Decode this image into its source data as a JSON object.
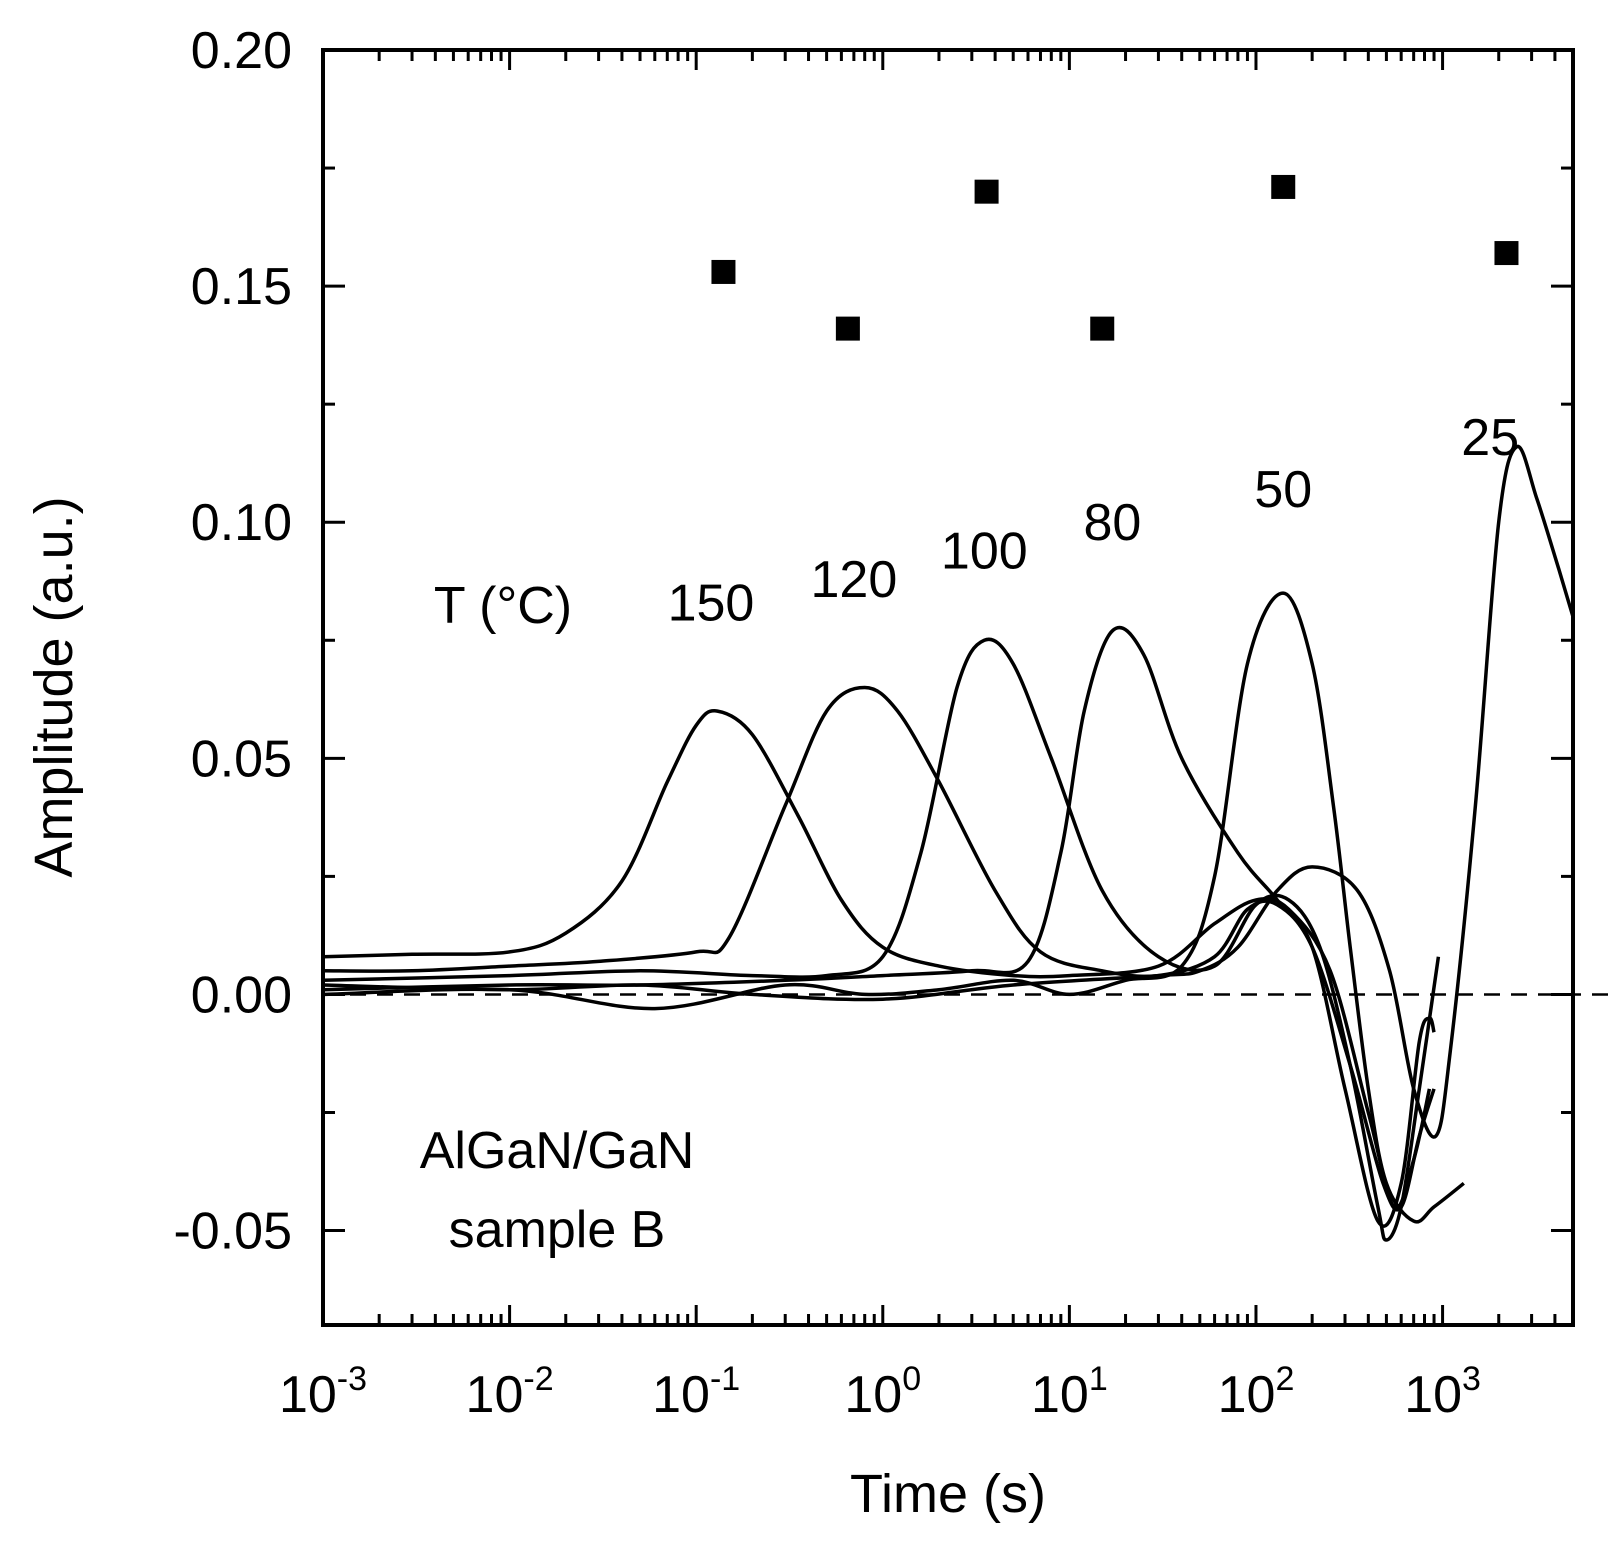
{
  "chart_data": {
    "type": "line",
    "xscale": "log",
    "xlim": [
      0.001,
      5000
    ],
    "ylim": [
      -0.07,
      0.2
    ],
    "xlabel": "Time (s)",
    "ylabel": "Amplitude (a.u.)",
    "title": "",
    "grid": false,
    "x_ticks": [
      {
        "base": "10",
        "exp": "-3",
        "value": 0.001
      },
      {
        "base": "10",
        "exp": "-2",
        "value": 0.01
      },
      {
        "base": "10",
        "exp": "-1",
        "value": 0.1
      },
      {
        "base": "10",
        "exp": "0",
        "value": 1
      },
      {
        "base": "10",
        "exp": "1",
        "value": 10
      },
      {
        "base": "10",
        "exp": "2",
        "value": 100
      },
      {
        "base": "10",
        "exp": "3",
        "value": 1000
      }
    ],
    "y_ticks": [
      {
        "label": "0.20",
        "value": 0.2
      },
      {
        "label": "0.15",
        "value": 0.15
      },
      {
        "label": "0.10",
        "value": 0.1
      },
      {
        "label": "0.05",
        "value": 0.05
      },
      {
        "label": "0.00",
        "value": 0.0
      },
      {
        "label": "-0.05",
        "value": -0.05
      }
    ],
    "annotations": {
      "temperature_header": "T (°C)",
      "sample_line1": "AlGaN/GaN",
      "sample_line2": "sample B"
    },
    "reference_line": {
      "y": 0.0,
      "style": "dashed"
    },
    "series": [
      {
        "name": "150",
        "label": "150",
        "label_at": [
          0.12,
          0.083
        ],
        "points": [
          [
            0.001,
            0.008
          ],
          [
            0.003,
            0.0085
          ],
          [
            0.01,
            0.009
          ],
          [
            0.02,
            0.013
          ],
          [
            0.04,
            0.024
          ],
          [
            0.07,
            0.045
          ],
          [
            0.1,
            0.057
          ],
          [
            0.13,
            0.06
          ],
          [
            0.2,
            0.055
          ],
          [
            0.35,
            0.038
          ],
          [
            0.6,
            0.02
          ],
          [
            1,
            0.01
          ],
          [
            2,
            0.006
          ],
          [
            5,
            0.004
          ],
          [
            10,
            0.004
          ],
          [
            30,
            0.006
          ],
          [
            60,
            0.015
          ],
          [
            100,
            0.02
          ],
          [
            150,
            0.018
          ],
          [
            250,
            0.005
          ],
          [
            400,
            -0.025
          ],
          [
            550,
            -0.045
          ],
          [
            700,
            -0.035
          ],
          [
            850,
            -0.02
          ]
        ]
      },
      {
        "name": "120",
        "label": "120",
        "label_at": [
          0.7,
          0.088
        ],
        "points": [
          [
            0.001,
            0.005
          ],
          [
            0.003,
            0.005
          ],
          [
            0.01,
            0.006
          ],
          [
            0.03,
            0.007
          ],
          [
            0.1,
            0.009
          ],
          [
            0.15,
            0.012
          ],
          [
            0.3,
            0.04
          ],
          [
            0.5,
            0.06
          ],
          [
            0.8,
            0.065
          ],
          [
            1.2,
            0.06
          ],
          [
            2,
            0.045
          ],
          [
            4,
            0.022
          ],
          [
            7,
            0.009
          ],
          [
            15,
            0.005
          ],
          [
            30,
            0.004
          ],
          [
            60,
            0.008
          ],
          [
            90,
            0.018
          ],
          [
            130,
            0.019
          ],
          [
            200,
            0.01
          ],
          [
            320,
            -0.015
          ],
          [
            480,
            -0.04
          ],
          [
            600,
            -0.045
          ],
          [
            750,
            -0.03
          ],
          [
            900,
            -0.02
          ]
        ]
      },
      {
        "name": "100",
        "label": "100",
        "label_at": [
          3.5,
          0.094
        ],
        "points": [
          [
            0.001,
            0.003
          ],
          [
            0.01,
            0.004
          ],
          [
            0.05,
            0.005
          ],
          [
            0.2,
            0.004
          ],
          [
            0.5,
            0.004
          ],
          [
            1,
            0.008
          ],
          [
            1.6,
            0.03
          ],
          [
            2.5,
            0.065
          ],
          [
            3.5,
            0.075
          ],
          [
            5,
            0.07
          ],
          [
            8,
            0.05
          ],
          [
            15,
            0.022
          ],
          [
            30,
            0.008
          ],
          [
            60,
            0.006
          ],
          [
            100,
            0.019
          ],
          [
            150,
            0.02
          ],
          [
            220,
            0.01
          ],
          [
            320,
            -0.015
          ],
          [
            450,
            -0.045
          ],
          [
            500,
            -0.052
          ],
          [
            600,
            -0.045
          ],
          [
            750,
            -0.02
          ],
          [
            950,
            0.008
          ]
        ]
      },
      {
        "name": "80",
        "label": "80",
        "label_at": [
          17,
          0.1
        ],
        "points": [
          [
            0.001,
            0.001
          ],
          [
            0.01,
            0.002
          ],
          [
            0.05,
            0.002
          ],
          [
            0.3,
            0.003
          ],
          [
            1,
            0.004
          ],
          [
            3,
            0.005
          ],
          [
            6,
            0.007
          ],
          [
            9,
            0.03
          ],
          [
            12,
            0.06
          ],
          [
            17,
            0.077
          ],
          [
            25,
            0.072
          ],
          [
            40,
            0.05
          ],
          [
            80,
            0.03
          ],
          [
            130,
            0.02
          ],
          [
            200,
            0.01
          ],
          [
            300,
            -0.02
          ],
          [
            450,
            -0.048
          ],
          [
            600,
            -0.04
          ],
          [
            750,
            -0.01
          ],
          [
            850,
            -0.005
          ],
          [
            900,
            -0.008
          ]
        ]
      },
      {
        "name": "50",
        "label": "50",
        "label_at": [
          140,
          0.107
        ],
        "points": [
          [
            0.001,
            0.0
          ],
          [
            0.01,
            0.001
          ],
          [
            0.06,
            -0.003
          ],
          [
            0.3,
            0.002
          ],
          [
            0.8,
            0.0
          ],
          [
            2,
            0.001
          ],
          [
            5,
            0.003
          ],
          [
            10,
            0.0
          ],
          [
            20,
            0.003
          ],
          [
            40,
            0.006
          ],
          [
            60,
            0.025
          ],
          [
            90,
            0.07
          ],
          [
            140,
            0.085
          ],
          [
            200,
            0.07
          ],
          [
            260,
            0.04
          ],
          [
            320,
            0.01
          ],
          [
            400,
            -0.02
          ],
          [
            500,
            -0.04
          ],
          [
            700,
            -0.048
          ],
          [
            900,
            -0.045
          ],
          [
            1300,
            -0.04
          ]
        ]
      },
      {
        "name": "25",
        "label": "25",
        "label_at": [
          1800,
          0.118
        ],
        "points": [
          [
            0.001,
            0.002
          ],
          [
            0.01,
            0.001
          ],
          [
            0.05,
            0.002
          ],
          [
            0.2,
            0.0
          ],
          [
            1,
            -0.001
          ],
          [
            5,
            0.002
          ],
          [
            30,
            0.004
          ],
          [
            50,
            0.005
          ],
          [
            80,
            0.01
          ],
          [
            130,
            0.022
          ],
          [
            200,
            0.027
          ],
          [
            350,
            0.022
          ],
          [
            520,
            0.005
          ],
          [
            700,
            -0.02
          ],
          [
            920,
            -0.03
          ],
          [
            1100,
            -0.012
          ],
          [
            1500,
            0.04
          ],
          [
            2000,
            0.1
          ],
          [
            2500,
            0.116
          ],
          [
            3200,
            0.105
          ],
          [
            4200,
            0.09
          ],
          [
            5000,
            0.08
          ]
        ]
      }
    ],
    "markers": {
      "style": "filled-square",
      "points": [
        [
          0.14,
          0.153
        ],
        [
          0.65,
          0.141
        ],
        [
          3.6,
          0.17
        ],
        [
          15,
          0.141
        ],
        [
          140,
          0.171
        ],
        [
          2200,
          0.157
        ]
      ]
    }
  }
}
